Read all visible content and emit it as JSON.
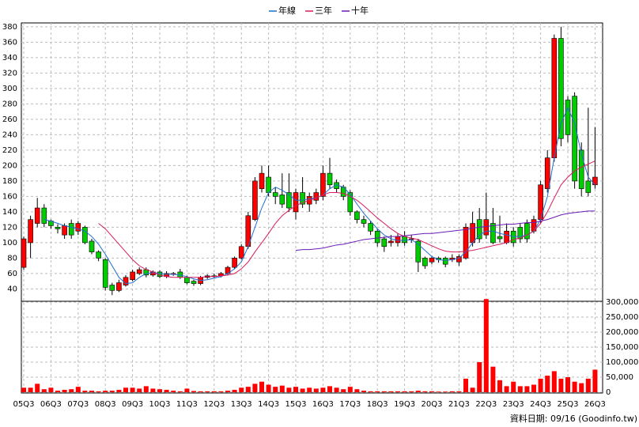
{
  "chart_data": [
    {
      "type": "candlestick",
      "legend": [
        {
          "name": "年線",
          "color": "#1f6fd0"
        },
        {
          "name": "三年",
          "color": "#d81b60"
        },
        {
          "name": "十年",
          "color": "#6a1bb8"
        }
      ],
      "categories": [
        "05Q3",
        null,
        null,
        null,
        "06Q3",
        null,
        null,
        null,
        "07Q3",
        null,
        null,
        null,
        "08Q3",
        null,
        null,
        null,
        "09Q3",
        null,
        null,
        null,
        "10Q3",
        null,
        null,
        null,
        "11Q3",
        null,
        null,
        null,
        "12Q3",
        null,
        null,
        null,
        "13Q3",
        null,
        null,
        null,
        "14Q3",
        null,
        null,
        null,
        "15Q3",
        null,
        null,
        null,
        "16Q3",
        null,
        null,
        null,
        "17Q3",
        null,
        null,
        null,
        "18Q3",
        null,
        null,
        null,
        "19Q3",
        null,
        null,
        null,
        "20Q3",
        null,
        null,
        null,
        "21Q3",
        null,
        null,
        null,
        "22Q3",
        null,
        null,
        null,
        "23Q3",
        null,
        null,
        null,
        "24Q3",
        null,
        null,
        null,
        "25Q3",
        null,
        null,
        null,
        "26Q3"
      ],
      "open": [
        68,
        100,
        125,
        145,
        128,
        120,
        110,
        125,
        115,
        120,
        102,
        88,
        78,
        45,
        38,
        45,
        52,
        60,
        65,
        58,
        62,
        56,
        59,
        62,
        55,
        50,
        47,
        55,
        56,
        57,
        60,
        68,
        80,
        95,
        130,
        170,
        185,
        165,
        162,
        165,
        140,
        165,
        150,
        155,
        160,
        190,
        178,
        172,
        165,
        140,
        130,
        125,
        115,
        105,
        100,
        100,
        108,
        105,
        102,
        80,
        75,
        80,
        80,
        78,
        75,
        80,
        100,
        130,
        110,
        125,
        108,
        100,
        115,
        120,
        125,
        115,
        130,
        170,
        210,
        365,
        285,
        290,
        220,
        180,
        175
      ],
      "high": [
        108,
        135,
        158,
        150,
        130,
        124,
        125,
        130,
        128,
        122,
        105,
        90,
        80,
        48,
        52,
        58,
        65,
        68,
        68,
        64,
        64,
        63,
        62,
        66,
        57,
        52,
        57,
        59,
        60,
        62,
        70,
        82,
        98,
        140,
        185,
        200,
        200,
        172,
        190,
        190,
        170,
        185,
        165,
        170,
        200,
        210,
        182,
        175,
        168,
        142,
        135,
        128,
        118,
        108,
        110,
        112,
        115,
        110,
        105,
        82,
        83,
        82,
        82,
        85,
        85,
        125,
        140,
        145,
        165,
        145,
        135,
        125,
        120,
        125,
        130,
        135,
        180,
        220,
        370,
        380,
        290,
        295,
        230,
        275,
        250
      ],
      "low": [
        65,
        80,
        120,
        120,
        118,
        112,
        105,
        105,
        110,
        98,
        85,
        76,
        38,
        32,
        36,
        43,
        50,
        58,
        55,
        56,
        54,
        54,
        57,
        53,
        46,
        44,
        45,
        53,
        54,
        55,
        58,
        66,
        78,
        92,
        128,
        165,
        160,
        150,
        145,
        140,
        130,
        145,
        140,
        150,
        155,
        170,
        165,
        155,
        135,
        125,
        120,
        110,
        95,
        88,
        95,
        95,
        96,
        100,
        62,
        66,
        72,
        74,
        68,
        75,
        70,
        78,
        95,
        100,
        105,
        98,
        100,
        98,
        95,
        100,
        100,
        112,
        125,
        165,
        205,
        225,
        230,
        170,
        160,
        160,
        170
      ],
      "close": [
        105,
        130,
        145,
        125,
        122,
        118,
        122,
        110,
        125,
        100,
        88,
        80,
        42,
        38,
        48,
        55,
        62,
        65,
        58,
        62,
        56,
        60,
        60,
        55,
        48,
        47,
        55,
        57,
        57,
        60,
        68,
        80,
        95,
        135,
        180,
        190,
        165,
        160,
        150,
        145,
        165,
        150,
        160,
        165,
        190,
        175,
        170,
        160,
        140,
        130,
        125,
        115,
        100,
        95,
        102,
        108,
        100,
        105,
        75,
        70,
        80,
        78,
        72,
        80,
        82,
        120,
        125,
        105,
        130,
        100,
        105,
        115,
        100,
        105,
        105,
        130,
        175,
        210,
        365,
        235,
        240,
        180,
        170,
        165,
        185
      ],
      "up_color": "#ff0000",
      "down_color": "#00cc00",
      "series": [
        {
          "name": "年線",
          "color": "#1f6fd0",
          "values": [
            null,
            null,
            null,
            130,
            128,
            125,
            122,
            120,
            118,
            115,
            108,
            98,
            85,
            70,
            55,
            47,
            48,
            55,
            60,
            61,
            60,
            59,
            59,
            58,
            56,
            53,
            51,
            52,
            54,
            56,
            60,
            66,
            75,
            95,
            120,
            145,
            165,
            172,
            168,
            162,
            155,
            155,
            157,
            158,
            162,
            170,
            175,
            172,
            163,
            150,
            138,
            128,
            118,
            110,
            105,
            103,
            103,
            104,
            98,
            90,
            82,
            78,
            77,
            78,
            80,
            88,
            100,
            110,
            115,
            115,
            112,
            110,
            108,
            108,
            110,
            115,
            130,
            160,
            210,
            255,
            275,
            255,
            215,
            185,
            175
          ]
        },
        {
          "name": "三年",
          "color": "#d81b60",
          "values": [
            null,
            null,
            null,
            null,
            null,
            null,
            null,
            null,
            null,
            null,
            null,
            125,
            118,
            108,
            98,
            88,
            78,
            70,
            65,
            62,
            58,
            56,
            55,
            55,
            55,
            55,
            55,
            56,
            56,
            57,
            58,
            60,
            66,
            75,
            88,
            100,
            112,
            125,
            135,
            142,
            148,
            152,
            155,
            158,
            162,
            165,
            165,
            164,
            160,
            155,
            148,
            140,
            132,
            125,
            118,
            112,
            108,
            106,
            104,
            100,
            96,
            92,
            89,
            88,
            88,
            89,
            90,
            92,
            94,
            96,
            98,
            100,
            104,
            106,
            110,
            115,
            125,
            140,
            158,
            175,
            185,
            193,
            198,
            202,
            206
          ]
        },
        {
          "name": "十年",
          "color": "#6a1bb8",
          "values": [
            null,
            null,
            null,
            null,
            null,
            null,
            null,
            null,
            null,
            null,
            null,
            null,
            null,
            null,
            null,
            null,
            null,
            null,
            null,
            null,
            null,
            null,
            null,
            null,
            null,
            null,
            null,
            null,
            null,
            null,
            null,
            null,
            null,
            null,
            null,
            null,
            null,
            null,
            null,
            null,
            90,
            91,
            91,
            92,
            93,
            95,
            97,
            98,
            100,
            102,
            104,
            105,
            106,
            107,
            108,
            108,
            109,
            110,
            111,
            112,
            112,
            113,
            114,
            115,
            116,
            117,
            119,
            120,
            121,
            122,
            123,
            124,
            124,
            125,
            126,
            126,
            128,
            130,
            133,
            136,
            138,
            139,
            140,
            141,
            141
          ]
        }
      ],
      "ylim": [
        24,
        385
      ],
      "yticks": [
        40,
        60,
        80,
        100,
        120,
        140,
        160,
        180,
        200,
        220,
        240,
        260,
        280,
        300,
        320,
        340,
        360,
        380
      ],
      "grid": true
    },
    {
      "type": "bar",
      "color": "#ff0000",
      "values": [
        15000,
        15000,
        28000,
        10000,
        15000,
        5000,
        8000,
        10000,
        18000,
        5000,
        5000,
        3000,
        5000,
        5000,
        8000,
        15000,
        15000,
        12000,
        20000,
        12000,
        10000,
        8000,
        5000,
        3000,
        12000,
        4000,
        3000,
        3000,
        3000,
        3000,
        5000,
        8000,
        15000,
        18000,
        28000,
        35000,
        25000,
        18000,
        22000,
        15000,
        18000,
        12000,
        15000,
        12000,
        15000,
        20000,
        15000,
        10000,
        18000,
        10000,
        5000,
        3000,
        3000,
        3000,
        3000,
        3000,
        3000,
        3000,
        5000,
        3000,
        3000,
        2000,
        2000,
        3000,
        3000,
        45000,
        15000,
        100000,
        310000,
        85000,
        40000,
        20000,
        35000,
        20000,
        20000,
        25000,
        45000,
        55000,
        70000,
        45000,
        50000,
        35000,
        30000,
        45000,
        75000
      ],
      "ylim": [
        0,
        300000
      ],
      "yticks": [
        0,
        {
          "value": 50000,
          "label": "50,000"
        },
        {
          "value": 100000,
          "label": "100,000"
        },
        {
          "value": 150000,
          "label": "150,000"
        },
        {
          "value": 200000,
          "label": "200,000"
        },
        {
          "value": 250000,
          "label": "250,000"
        },
        {
          "value": 300000,
          "label": "300,000"
        }
      ],
      "grid": true
    }
  ],
  "footer": "資料日期: 09/16  (Goodinfo.tw)"
}
